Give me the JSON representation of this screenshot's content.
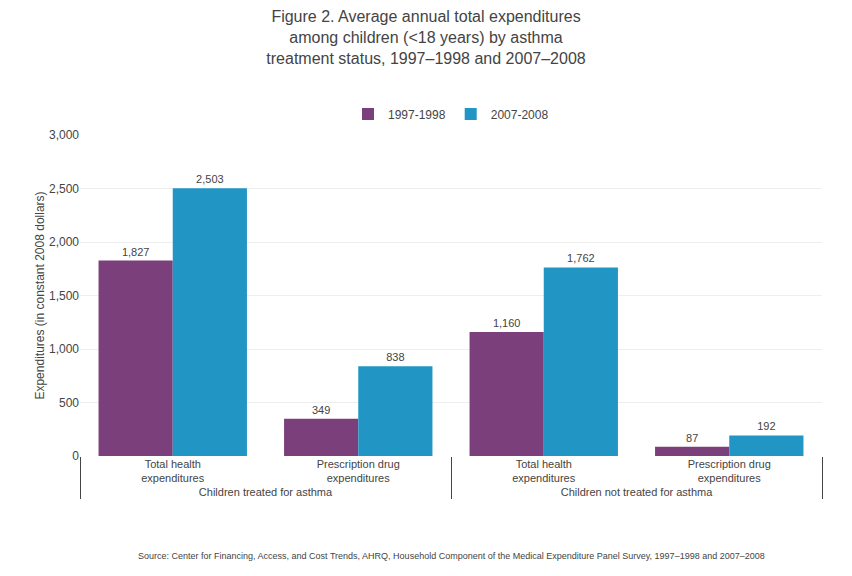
{
  "chart_data": {
    "type": "bar",
    "title": "Figure 2. Average annual total expenditures\namong children (<18 years) by asthma\ntreatment status, 1997–1998 and 2007–2008",
    "categories": [
      [
        "Children treated for asthma",
        "Total health\nexpenditures"
      ],
      [
        "Children treated for asthma",
        "Prescription drug\nexpenditures"
      ],
      [
        "Children not treated for asthma",
        "Total health\nexpenditures"
      ],
      [
        "Children not treated for asthma",
        "Prescription drug\nexpenditures"
      ]
    ],
    "series": [
      {
        "name": "1997-1998",
        "color": "#7B3F7B",
        "values": [
          1827,
          349,
          1160,
          87
        ],
        "value_labels": [
          "1,827",
          "349",
          "1,160",
          "87"
        ]
      },
      {
        "name": "2007-2008",
        "color": "#2196C4",
        "values": [
          2503,
          838,
          1762,
          192
        ],
        "value_labels": [
          "2,503",
          "838",
          "1,762",
          "192"
        ]
      }
    ],
    "ylabel": "Expenditures (in constant 2008 dollars)",
    "ylim": [
      0,
      3000
    ],
    "yticks": [
      0,
      500,
      {
        "value": 1000,
        "label": "1,000"
      },
      {
        "value": 1500,
        "label": "1,500"
      },
      {
        "value": 2000,
        "label": "2,000"
      },
      {
        "value": 2500,
        "label": "2,500"
      },
      {
        "value": 3000,
        "label": "3,000"
      }
    ],
    "grid": true,
    "legend": "top",
    "data_labels": true,
    "annotations": [
      "Source: Center for Financing, Access, and Cost Trends, AHRQ, Household Component of the Medical Expenditure Panel Survey, 1997–1998 and 2007–2008"
    ]
  }
}
